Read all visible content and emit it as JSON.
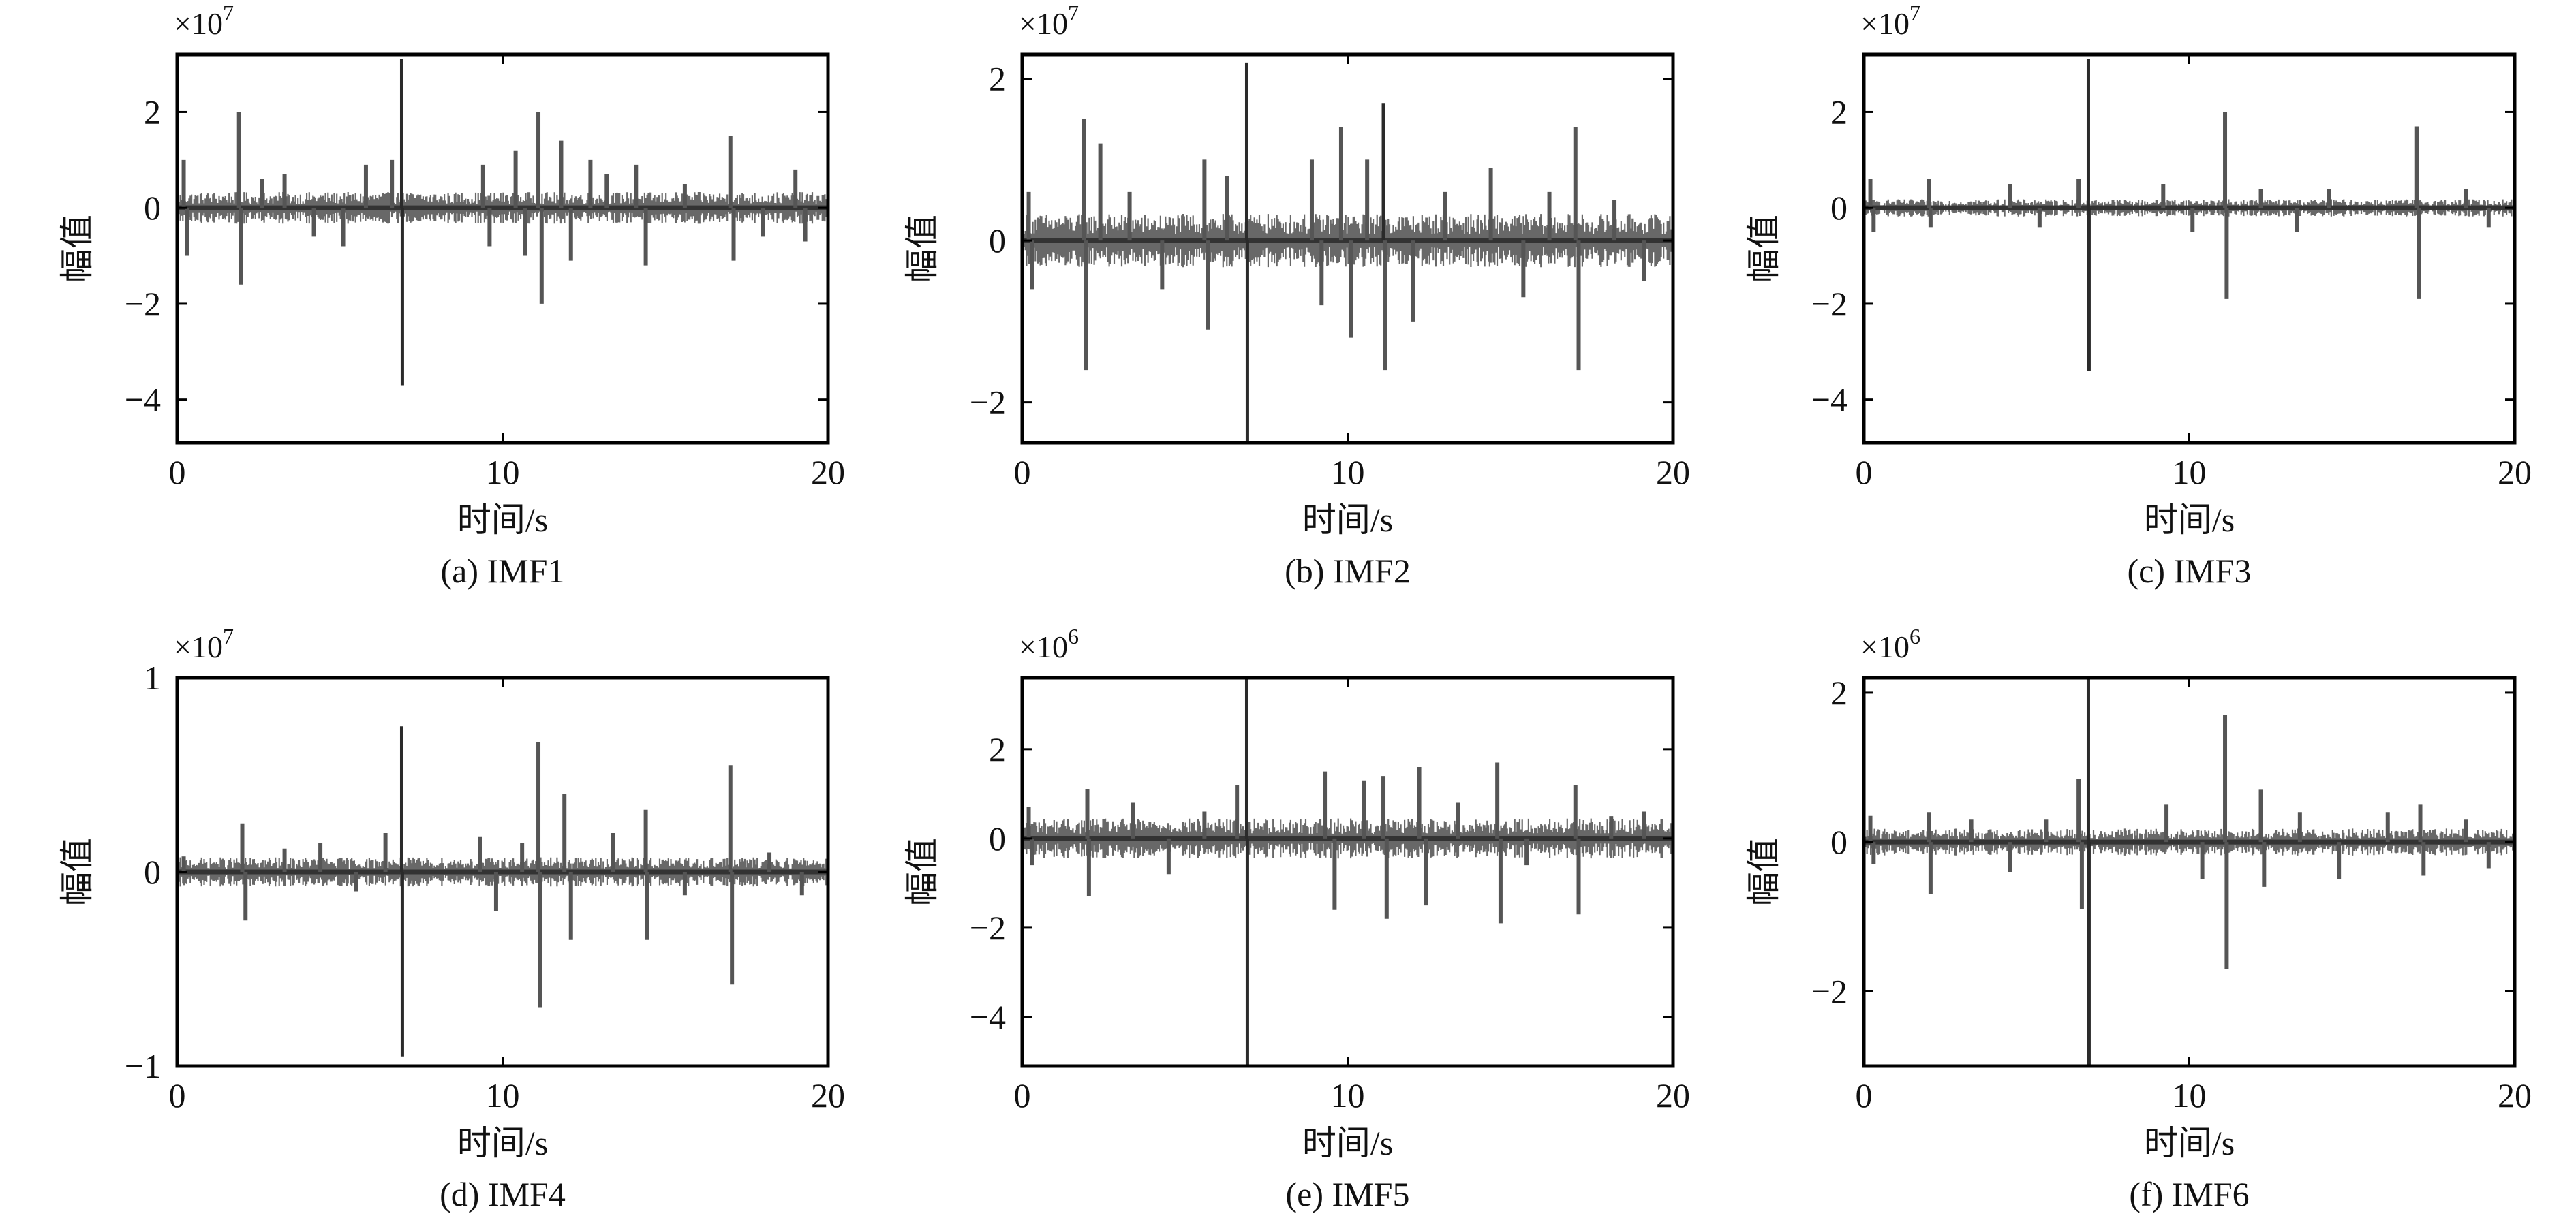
{
  "chart_data": [
    {
      "type": "line",
      "caption": "(a) IMF1",
      "multiplier_base": "×10",
      "multiplier_exp": "7",
      "xlabel": "时间/s",
      "ylabel": "幅值",
      "xlim": [
        0,
        20
      ],
      "ylim": [
        -4.9,
        3.2
      ],
      "xticks": [
        0,
        10,
        20
      ],
      "yticks": [
        -4,
        -2,
        0,
        2
      ],
      "ytick_labels": [
        "−4",
        "−2",
        "0",
        "2"
      ],
      "series": [
        {
          "color": "#4d4d4d",
          "noise_band": 0.22,
          "spikes": [
            {
              "x": 0.2,
              "y": 1.0
            },
            {
              "x": 0.3,
              "y": -1.0
            },
            {
              "x": 1.9,
              "y": 2.0
            },
            {
              "x": 1.95,
              "y": -1.6
            },
            {
              "x": 2.6,
              "y": 0.6
            },
            {
              "x": 3.3,
              "y": 0.7
            },
            {
              "x": 4.2,
              "y": -0.6
            },
            {
              "x": 5.1,
              "y": -0.8
            },
            {
              "x": 5.8,
              "y": 0.9
            },
            {
              "x": 6.6,
              "y": 1.0
            },
            {
              "x": 6.9,
              "y": 3.1
            },
            {
              "x": 6.92,
              "y": -3.7
            },
            {
              "x": 9.4,
              "y": 0.9
            },
            {
              "x": 9.6,
              "y": -0.8
            },
            {
              "x": 10.4,
              "y": 1.2
            },
            {
              "x": 10.7,
              "y": -1.0
            },
            {
              "x": 11.1,
              "y": 2.0
            },
            {
              "x": 11.2,
              "y": -2.0
            },
            {
              "x": 11.8,
              "y": 1.4
            },
            {
              "x": 12.1,
              "y": -1.1
            },
            {
              "x": 12.7,
              "y": 1.0
            },
            {
              "x": 13.2,
              "y": 0.7
            },
            {
              "x": 14.1,
              "y": 0.9
            },
            {
              "x": 14.4,
              "y": -1.2
            },
            {
              "x": 15.6,
              "y": 0.5
            },
            {
              "x": 17.0,
              "y": 1.5
            },
            {
              "x": 17.1,
              "y": -1.1
            },
            {
              "x": 18.0,
              "y": -0.6
            },
            {
              "x": 19.0,
              "y": 0.8
            },
            {
              "x": 19.3,
              "y": -0.7
            }
          ]
        }
      ]
    },
    {
      "type": "line",
      "caption": "(b) IMF2",
      "multiplier_base": "×10",
      "multiplier_exp": "7",
      "xlabel": "时间/s",
      "ylabel": "幅值",
      "xlim": [
        0,
        20
      ],
      "ylim": [
        -2.5,
        2.3
      ],
      "xticks": [
        0,
        10,
        20
      ],
      "yticks": [
        -2,
        0,
        2
      ],
      "ytick_labels": [
        "−2",
        "0",
        "2"
      ],
      "series": [
        {
          "color": "#4d4d4d",
          "noise_band": 0.22,
          "spikes": [
            {
              "x": 0.2,
              "y": 0.6
            },
            {
              "x": 0.3,
              "y": -0.6
            },
            {
              "x": 1.9,
              "y": 1.5
            },
            {
              "x": 1.95,
              "y": -1.6
            },
            {
              "x": 2.4,
              "y": 1.2
            },
            {
              "x": 3.3,
              "y": 0.6
            },
            {
              "x": 4.3,
              "y": -0.6
            },
            {
              "x": 5.6,
              "y": 1.0
            },
            {
              "x": 5.7,
              "y": -1.1
            },
            {
              "x": 6.3,
              "y": 0.8
            },
            {
              "x": 6.9,
              "y": 2.2
            },
            {
              "x": 6.92,
              "y": -2.5
            },
            {
              "x": 8.9,
              "y": 1.0
            },
            {
              "x": 9.2,
              "y": -0.8
            },
            {
              "x": 9.8,
              "y": 1.4
            },
            {
              "x": 10.1,
              "y": -1.2
            },
            {
              "x": 10.6,
              "y": 1.0
            },
            {
              "x": 11.1,
              "y": 1.7
            },
            {
              "x": 11.15,
              "y": -1.6
            },
            {
              "x": 12.0,
              "y": -1.0
            },
            {
              "x": 13.0,
              "y": 0.6
            },
            {
              "x": 14.4,
              "y": 0.9
            },
            {
              "x": 15.4,
              "y": -0.7
            },
            {
              "x": 16.2,
              "y": 0.6
            },
            {
              "x": 17.0,
              "y": 1.4
            },
            {
              "x": 17.1,
              "y": -1.6
            },
            {
              "x": 18.2,
              "y": 0.5
            },
            {
              "x": 19.1,
              "y": -0.5
            }
          ]
        }
      ]
    },
    {
      "type": "line",
      "caption": "(c) IMF3",
      "multiplier_base": "×10",
      "multiplier_exp": "7",
      "xlabel": "时间/s",
      "ylabel": "幅值",
      "xlim": [
        0,
        20
      ],
      "ylim": [
        -4.9,
        3.2
      ],
      "xticks": [
        0,
        10,
        20
      ],
      "yticks": [
        -4,
        -2,
        0,
        2
      ],
      "ytick_labels": [
        "−4",
        "−2",
        "0",
        "2"
      ],
      "series": [
        {
          "color": "#4d4d4d",
          "noise_band": 0.12,
          "spikes": [
            {
              "x": 0.2,
              "y": 0.6
            },
            {
              "x": 0.3,
              "y": -0.5
            },
            {
              "x": 2.0,
              "y": 0.6
            },
            {
              "x": 2.05,
              "y": -0.4
            },
            {
              "x": 4.5,
              "y": 0.5
            },
            {
              "x": 5.4,
              "y": -0.4
            },
            {
              "x": 6.6,
              "y": 0.6
            },
            {
              "x": 6.9,
              "y": 3.1
            },
            {
              "x": 6.92,
              "y": -3.4
            },
            {
              "x": 9.2,
              "y": 0.5
            },
            {
              "x": 10.1,
              "y": -0.5
            },
            {
              "x": 11.1,
              "y": 2.0
            },
            {
              "x": 11.15,
              "y": -1.9
            },
            {
              "x": 12.2,
              "y": 0.4
            },
            {
              "x": 13.3,
              "y": -0.5
            },
            {
              "x": 14.3,
              "y": 0.4
            },
            {
              "x": 17.0,
              "y": 1.7
            },
            {
              "x": 17.05,
              "y": -1.9
            },
            {
              "x": 18.5,
              "y": 0.4
            },
            {
              "x": 19.2,
              "y": -0.4
            }
          ]
        }
      ]
    },
    {
      "type": "line",
      "caption": "(d) IMF4",
      "multiplier_base": "×10",
      "multiplier_exp": "7",
      "xlabel": "时间/s",
      "ylabel": "幅值",
      "xlim": [
        0,
        20
      ],
      "ylim": [
        -1,
        1
      ],
      "xticks": [
        0,
        10,
        20
      ],
      "yticks": [
        -1,
        0,
        1
      ],
      "ytick_labels": [
        "−1",
        "0",
        "1"
      ],
      "series": [
        {
          "color": "#4d4d4d",
          "noise_band": 0.05,
          "spikes": [
            {
              "x": 0.2,
              "y": 0.08
            },
            {
              "x": 2.0,
              "y": 0.25
            },
            {
              "x": 2.1,
              "y": -0.25
            },
            {
              "x": 3.3,
              "y": 0.12
            },
            {
              "x": 4.4,
              "y": 0.15
            },
            {
              "x": 5.5,
              "y": -0.1
            },
            {
              "x": 6.4,
              "y": 0.2
            },
            {
              "x": 6.9,
              "y": 0.75
            },
            {
              "x": 6.92,
              "y": -0.95
            },
            {
              "x": 9.3,
              "y": 0.18
            },
            {
              "x": 9.8,
              "y": -0.2
            },
            {
              "x": 10.6,
              "y": 0.15
            },
            {
              "x": 11.1,
              "y": 0.67
            },
            {
              "x": 11.15,
              "y": -0.7
            },
            {
              "x": 11.9,
              "y": 0.4
            },
            {
              "x": 12.1,
              "y": -0.35
            },
            {
              "x": 13.4,
              "y": 0.2
            },
            {
              "x": 14.4,
              "y": 0.32
            },
            {
              "x": 14.45,
              "y": -0.35
            },
            {
              "x": 15.6,
              "y": -0.12
            },
            {
              "x": 17.0,
              "y": 0.55
            },
            {
              "x": 17.05,
              "y": -0.58
            },
            {
              "x": 18.2,
              "y": 0.1
            },
            {
              "x": 19.2,
              "y": -0.12
            }
          ]
        }
      ]
    },
    {
      "type": "line",
      "caption": "(e) IMF5",
      "multiplier_base": "×10",
      "multiplier_exp": "6",
      "xlabel": "时间/s",
      "ylabel": "幅值",
      "xlim": [
        0,
        20
      ],
      "ylim": [
        -5.1,
        3.6
      ],
      "xticks": [
        0,
        10,
        20
      ],
      "yticks": [
        -4,
        -2,
        0,
        2
      ],
      "ytick_labels": [
        "−4",
        "−2",
        "0",
        "2"
      ],
      "series": [
        {
          "color": "#4d4d4d",
          "noise_band": 0.3,
          "spikes": [
            {
              "x": 0.2,
              "y": 0.7
            },
            {
              "x": 0.3,
              "y": -0.6
            },
            {
              "x": 2.0,
              "y": 1.1
            },
            {
              "x": 2.05,
              "y": -1.3
            },
            {
              "x": 3.4,
              "y": 0.8
            },
            {
              "x": 4.5,
              "y": -0.8
            },
            {
              "x": 5.6,
              "y": 0.6
            },
            {
              "x": 6.6,
              "y": 1.2
            },
            {
              "x": 6.9,
              "y": 3.6
            },
            {
              "x": 6.92,
              "y": -5.1
            },
            {
              "x": 9.3,
              "y": 1.5
            },
            {
              "x": 9.6,
              "y": -1.6
            },
            {
              "x": 10.5,
              "y": 1.3
            },
            {
              "x": 11.1,
              "y": 1.4
            },
            {
              "x": 11.2,
              "y": -1.8
            },
            {
              "x": 12.2,
              "y": 1.6
            },
            {
              "x": 12.4,
              "y": -1.5
            },
            {
              "x": 13.4,
              "y": 0.8
            },
            {
              "x": 14.6,
              "y": 1.7
            },
            {
              "x": 14.7,
              "y": -1.9
            },
            {
              "x": 15.5,
              "y": -0.6
            },
            {
              "x": 17.0,
              "y": 1.2
            },
            {
              "x": 17.1,
              "y": -1.7
            },
            {
              "x": 18.1,
              "y": 0.5
            },
            {
              "x": 19.1,
              "y": 0.6
            }
          ]
        }
      ]
    },
    {
      "type": "line",
      "caption": "(f) IMF6",
      "multiplier_base": "×10",
      "multiplier_exp": "6",
      "xlabel": "时间/s",
      "ylabel": "幅值",
      "xlim": [
        0,
        20
      ],
      "ylim": [
        -3,
        2.2
      ],
      "xticks": [
        0,
        10,
        20
      ],
      "yticks": [
        -2,
        0,
        2
      ],
      "ytick_labels": [
        "−2",
        "0",
        "2"
      ],
      "series": [
        {
          "color": "#4d4d4d",
          "noise_band": 0.12,
          "spikes": [
            {
              "x": 0.2,
              "y": 0.35
            },
            {
              "x": 0.3,
              "y": -0.3
            },
            {
              "x": 2.0,
              "y": 0.4
            },
            {
              "x": 2.05,
              "y": -0.7
            },
            {
              "x": 3.3,
              "y": 0.3
            },
            {
              "x": 4.5,
              "y": -0.4
            },
            {
              "x": 5.6,
              "y": 0.3
            },
            {
              "x": 6.6,
              "y": 0.85
            },
            {
              "x": 6.7,
              "y": -0.9
            },
            {
              "x": 6.9,
              "y": 2.2
            },
            {
              "x": 6.92,
              "y": -3.0
            },
            {
              "x": 9.3,
              "y": 0.5
            },
            {
              "x": 10.4,
              "y": -0.5
            },
            {
              "x": 11.1,
              "y": 1.7
            },
            {
              "x": 11.15,
              "y": -1.7
            },
            {
              "x": 12.2,
              "y": 0.7
            },
            {
              "x": 12.3,
              "y": -0.6
            },
            {
              "x": 13.4,
              "y": 0.4
            },
            {
              "x": 14.6,
              "y": -0.5
            },
            {
              "x": 16.1,
              "y": 0.4
            },
            {
              "x": 17.1,
              "y": 0.5
            },
            {
              "x": 17.2,
              "y": -0.45
            },
            {
              "x": 18.5,
              "y": 0.3
            },
            {
              "x": 19.2,
              "y": -0.35
            }
          ]
        }
      ]
    }
  ]
}
